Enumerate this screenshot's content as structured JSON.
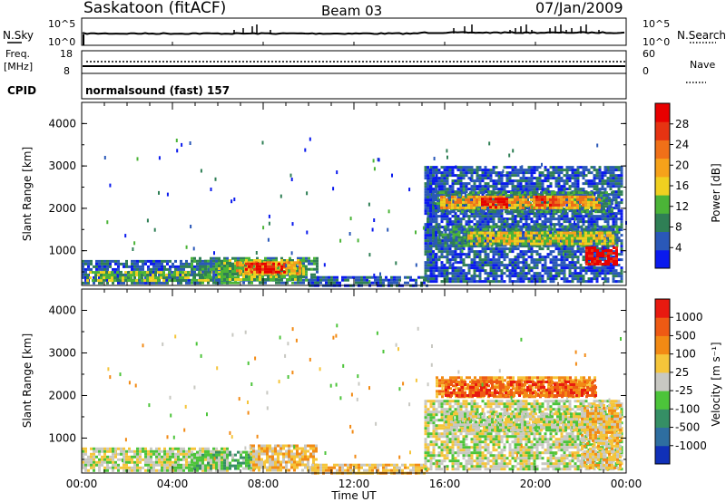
{
  "header": {
    "station": "Saskatoon (fitACF)",
    "beam": "Beam 03",
    "date": "07/Jan/2009"
  },
  "side_labels": {
    "nsky": "N.Sky",
    "nsearch": "N.Search",
    "freq_line1": "Freq.",
    "freq_line2": "[MHz]",
    "nave": "Nave",
    "cpid": "CPID"
  },
  "noise_panel": {
    "left_ticks": [
      "10^5",
      "10^0"
    ],
    "right_ticks": [
      "10^5",
      "10^0"
    ]
  },
  "freq_panel": {
    "left_ticks": [
      "18",
      "8"
    ],
    "right_ticks": [
      "60",
      "0"
    ]
  },
  "cpid_text": "normalsound (fast) 157",
  "chart_data": [
    {
      "type": "heatmap",
      "name": "power",
      "ylabel": "Slant Range [km]",
      "yticks": [
        "4000",
        "3000",
        "2000",
        "1000"
      ],
      "ylim": [
        180,
        4500
      ],
      "xlim": [
        0,
        24
      ],
      "colorbar_label": "Power [dB]",
      "colorbar_ticks": [
        "28",
        "24",
        "20",
        "16",
        "12",
        "8",
        "4"
      ],
      "colors": [
        "#0a1aee",
        "#2a58b8",
        "#2f7f55",
        "#4bb437",
        "#f0d020",
        "#f6a21a",
        "#f07018",
        "#e63312",
        "#e80000"
      ],
      "regions": [
        {
          "t0": 0.0,
          "t1": 6.4,
          "r0": 250,
          "r1": 780,
          "level": 1
        },
        {
          "t0": 0.2,
          "t1": 6.2,
          "r0": 300,
          "r1": 520,
          "level": 3
        },
        {
          "t0": 4.8,
          "t1": 10.4,
          "r0": 250,
          "r1": 850,
          "level": 2
        },
        {
          "t0": 6.0,
          "t1": 9.8,
          "r0": 350,
          "r1": 800,
          "level": 3
        },
        {
          "t0": 6.8,
          "t1": 9.6,
          "r0": 450,
          "r1": 750,
          "level": 5
        },
        {
          "t0": 7.2,
          "t1": 9.0,
          "r0": 500,
          "r1": 720,
          "level": 8
        },
        {
          "t0": 10.0,
          "t1": 15.2,
          "r0": 200,
          "r1": 400,
          "level": 1
        },
        {
          "t0": 15.1,
          "t1": 23.8,
          "r0": 250,
          "r1": 3000,
          "level": 1
        },
        {
          "t0": 15.4,
          "t1": 23.4,
          "r0": 1900,
          "r1": 2400,
          "level": 2
        },
        {
          "t0": 15.8,
          "t1": 22.8,
          "r0": 2000,
          "r1": 2300,
          "level": 5
        },
        {
          "t0": 17.6,
          "t1": 18.8,
          "r0": 2050,
          "r1": 2250,
          "level": 8
        },
        {
          "t0": 20.0,
          "t1": 21.0,
          "r0": 2100,
          "r1": 2300,
          "level": 7
        },
        {
          "t0": 15.5,
          "t1": 23.6,
          "r0": 1100,
          "r1": 1600,
          "level": 2
        },
        {
          "t0": 17.0,
          "t1": 23.4,
          "r0": 1150,
          "r1": 1450,
          "level": 4
        },
        {
          "t0": 22.2,
          "t1": 23.6,
          "r0": 700,
          "r1": 1100,
          "level": 8
        },
        {
          "t0": 15.2,
          "t1": 15.6,
          "r0": 800,
          "r1": 3000,
          "level": 1
        }
      ]
    },
    {
      "type": "heatmap",
      "name": "velocity",
      "ylabel": "Slant Range [km]",
      "yticks": [
        "4000",
        "3000",
        "2000",
        "1000"
      ],
      "ylim": [
        180,
        4500
      ],
      "xlim": [
        0,
        24
      ],
      "xlabel": "Time UT",
      "xticks": [
        "00:00",
        "04:00",
        "08:00",
        "12:00",
        "16:00",
        "20:00",
        "00:00"
      ],
      "colorbar_label": "Velocity [m s⁻¹]",
      "colorbar_ticks": [
        "1000",
        "500",
        "100",
        "25",
        "-25",
        "-100",
        "-500",
        "-1000"
      ],
      "colors": [
        "#1030b8",
        "#2e6ea0",
        "#358f65",
        "#4cc43a",
        "#c8c8c2",
        "#f5c53a",
        "#f28a14",
        "#ee5a14",
        "#e81a10"
      ],
      "regions": [
        {
          "t0": 0.0,
          "t1": 6.4,
          "r0": 250,
          "r1": 780,
          "level": 4
        },
        {
          "t0": 4.8,
          "t1": 7.6,
          "r0": 300,
          "r1": 700,
          "level": 3
        },
        {
          "t0": 7.4,
          "t1": 10.4,
          "r0": 250,
          "r1": 850,
          "level": 5
        },
        {
          "t0": 10.0,
          "t1": 15.2,
          "r0": 200,
          "r1": 400,
          "level": 5
        },
        {
          "t0": 15.1,
          "t1": 23.8,
          "r0": 250,
          "r1": 1900,
          "level": 4
        },
        {
          "t0": 16.0,
          "t1": 23.6,
          "r0": 1200,
          "r1": 1600,
          "level": 4
        },
        {
          "t0": 15.6,
          "t1": 22.6,
          "r0": 2000,
          "r1": 2450,
          "level": 6
        },
        {
          "t0": 16.0,
          "t1": 22.6,
          "r0": 2000,
          "r1": 2350,
          "level": 7
        },
        {
          "t0": 22.0,
          "t1": 23.8,
          "r0": 300,
          "r1": 1800,
          "level": 5
        }
      ]
    }
  ]
}
